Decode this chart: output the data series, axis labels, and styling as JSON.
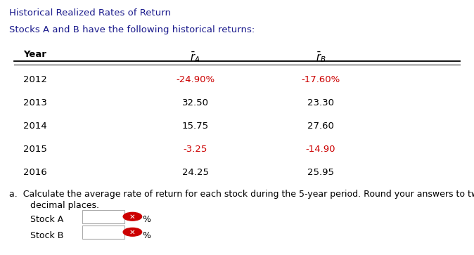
{
  "title": "Historical Realized Rates of Return",
  "subtitle": "Stocks A and B have the following historical returns:",
  "years": [
    "2012",
    "2013",
    "2014",
    "2015",
    "2016"
  ],
  "r_A": [
    "-24.90%",
    "32.50",
    "15.75",
    "-3.25",
    "24.25"
  ],
  "r_B": [
    "-17.60%",
    "23.30",
    "27.60",
    "-14.90",
    "25.95"
  ],
  "question_line1": "a.  Calculate the average rate of return for each stock during the 5-year period. Round your answers to two",
  "question_line2": "decimal places.",
  "stock_a_label": "Stock A",
  "stock_b_label": "Stock B",
  "negative_color": "#cc0000",
  "normal_color": "#000000",
  "title_color": "#1a1a8c",
  "subtitle_color": "#1a1a8c",
  "bg_color": "#ffffff",
  "header_line_color": "#000000",
  "font_size_title": 9.5,
  "font_size_body": 9.5,
  "font_size_question": 9.0
}
